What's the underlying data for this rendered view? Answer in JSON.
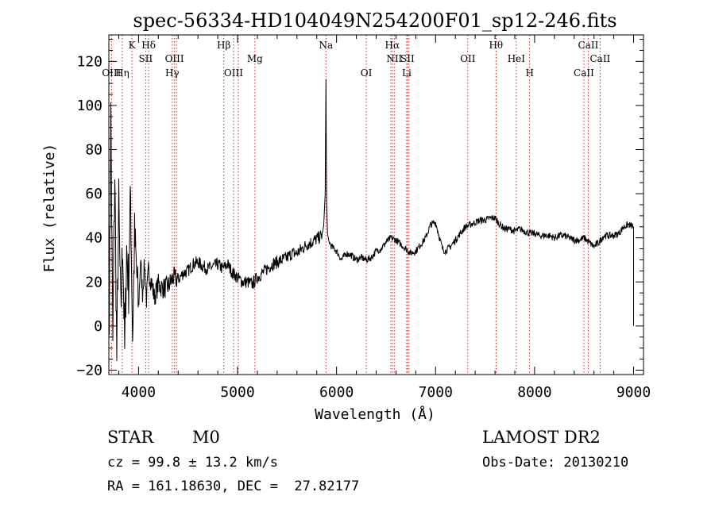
{
  "chart_data": {
    "type": "line",
    "title": "spec-56334-HD104049N254200F01_sp12-246.fits",
    "xlabel": "Wavelength (Å)",
    "ylabel": "Flux (relative)",
    "xlim": [
      3700,
      9100
    ],
    "ylim": [
      -22,
      132
    ],
    "x_ticks": [
      4000,
      5000,
      6000,
      7000,
      8000,
      9000
    ],
    "y_ticks": [
      -20,
      0,
      20,
      40,
      60,
      80,
      100,
      120
    ],
    "grid": false,
    "lines": [
      {
        "label": "K",
        "x": 3934,
        "row": 0
      },
      {
        "label": "Hδ",
        "x": 4102,
        "row": 0
      },
      {
        "label": "Hβ",
        "x": 4861,
        "row": 0
      },
      {
        "label": "Na",
        "x": 5893,
        "row": 0
      },
      {
        "label": "Hα",
        "x": 6563,
        "row": 0
      },
      {
        "label": "Hθ",
        "x": 7610,
        "row": 0
      },
      {
        "label": "CaII",
        "x": 8542,
        "row": 0
      },
      {
        "label": "SII",
        "x": 4072,
        "row": 1
      },
      {
        "label": "OIII",
        "x": 4363,
        "row": 1
      },
      {
        "label": "Mg",
        "x": 5175,
        "row": 1
      },
      {
        "label": "NII",
        "x": 6583,
        "row": 1
      },
      {
        "label": "SII",
        "x": 6716,
        "row": 1
      },
      {
        "label": "OII",
        "x": 7325,
        "row": 1
      },
      {
        "label": "HeI",
        "x": 7815,
        "row": 1
      },
      {
        "label": "CaII",
        "x": 8662,
        "row": 1
      },
      {
        "label": "OIII",
        "x": 3727,
        "row": 2
      },
      {
        "label": "Hη",
        "x": 3835,
        "row": 2
      },
      {
        "label": "Hγ",
        "x": 4340,
        "row": 2
      },
      {
        "label": "OIII",
        "x": 4959,
        "row": 2
      },
      {
        "label": "OI",
        "x": 6300,
        "row": 2
      },
      {
        "label": "Li",
        "x": 6708,
        "row": 2
      },
      {
        "label": "H",
        "x": 7950,
        "row": 2
      },
      {
        "label": "CaII",
        "x": 8498,
        "row": 2
      }
    ],
    "extra_line_x": [
      4383,
      5007,
      6548,
      6731,
      7612
    ],
    "series": [
      {
        "color": "#000000",
        "x": [
          3705,
          3720,
          3740,
          3760,
          3780,
          3800,
          3820,
          3840,
          3860,
          3880,
          3900,
          3920,
          3940,
          3960,
          3980,
          4000,
          4020,
          4040,
          4060,
          4080,
          4100,
          4130,
          4160,
          4200,
          4250,
          4300,
          4350,
          4400,
          4450,
          4500,
          4550,
          4600,
          4650,
          4700,
          4750,
          4800,
          4850,
          4900,
          4950,
          5000,
          5050,
          5100,
          5150,
          5200,
          5250,
          5300,
          5350,
          5400,
          5450,
          5500,
          5550,
          5600,
          5650,
          5700,
          5750,
          5780,
          5820,
          5850,
          5870,
          5885,
          5893,
          5900,
          5910,
          5925,
          5950,
          6000,
          6050,
          6100,
          6150,
          6200,
          6250,
          6300,
          6350,
          6400,
          6450,
          6500,
          6550,
          6600,
          6650,
          6700,
          6750,
          6800,
          6850,
          6900,
          6950,
          7000,
          7040,
          7070,
          7100,
          7150,
          7200,
          7250,
          7300,
          7350,
          7400,
          7450,
          7500,
          7550,
          7600,
          7650,
          7700,
          7750,
          7800,
          7850,
          7900,
          7950,
          8000,
          8050,
          8100,
          8150,
          8200,
          8250,
          8300,
          8350,
          8400,
          8450,
          8500,
          8550,
          8600,
          8650,
          8700,
          8750,
          8800,
          8850,
          8900,
          8950,
          9000
        ],
        "y": [
          10,
          95,
          -8,
          70,
          -15,
          55,
          5,
          40,
          -12,
          35,
          18,
          60,
          -5,
          40,
          25,
          8,
          30,
          15,
          28,
          12,
          25,
          20,
          13,
          19,
          17,
          18,
          22,
          21,
          24,
          25,
          28,
          29,
          27,
          26,
          27,
          28,
          26,
          28,
          24,
          22,
          20,
          20,
          19,
          22,
          24,
          26,
          28,
          29,
          30,
          31,
          33,
          33,
          35,
          37,
          38,
          39,
          40,
          41,
          45,
          60,
          112,
          55,
          41,
          38,
          36,
          34,
          30,
          33,
          32,
          30,
          31,
          30,
          31,
          34,
          35,
          38,
          40,
          39,
          37,
          35,
          33,
          34,
          37,
          40,
          46,
          47,
          40,
          35,
          34,
          36,
          39,
          42,
          45,
          46,
          47,
          48,
          48,
          49,
          49,
          46,
          44,
          44,
          43,
          44,
          43,
          42,
          42,
          41,
          41,
          41,
          40,
          41,
          41,
          40,
          39,
          39,
          40,
          38,
          36,
          38,
          41,
          41,
          41,
          42,
          45,
          46,
          45
        ]
      }
    ]
  },
  "info": {
    "object_type": "STAR",
    "subclass": "M0",
    "survey": "LAMOST DR2",
    "cz": "cz = 99.8 ± 13.2 km/s",
    "obs_date": "Obs-Date: 20130210",
    "radec": "RA = 161.18630, DEC =  27.82177"
  }
}
